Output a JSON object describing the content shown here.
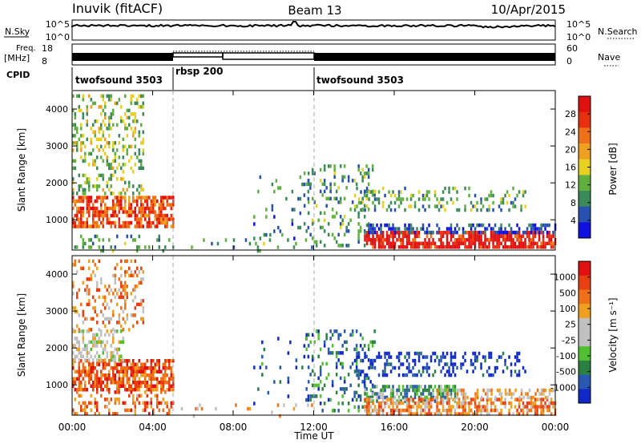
{
  "header": {
    "station": "Inuvik (fitACF)",
    "beam": "Beam 13",
    "date": "10/Apr/2015"
  },
  "top_panels": {
    "nsky_label": "N.Sky",
    "nsky_ticks": [
      "10^5",
      "10^0"
    ],
    "nsearch_label": "N.Search",
    "nsearch_ticks": [
      "10^5",
      "10^0"
    ],
    "freq_label": "Freq.",
    "freq_unit": "[MHz]",
    "freq_ticks": [
      "18",
      "8"
    ],
    "nave_label": "Nave",
    "nave_ticks": [
      "60",
      "0"
    ],
    "cpid_label": "CPID",
    "cpid_segments": [
      {
        "label": "twofsound 3503",
        "start_hour": 0,
        "end_hour": 5
      },
      {
        "label": "rbsp 200",
        "start_hour": 5,
        "end_hour": 12
      },
      {
        "label": "twofsound 3503",
        "start_hour": 12,
        "end_hour": 24
      }
    ]
  },
  "chart_data": [
    {
      "type": "heatmap",
      "name": "power",
      "ylabel": "Slant Range [km]",
      "yticks": [
        "1000",
        "2000",
        "3000",
        "4000"
      ],
      "ylim": [
        180,
        4500
      ],
      "xlim": [
        0,
        24
      ],
      "colorbar_label": "Power [dB]",
      "colorbar_ticks": [
        "4",
        "8",
        "12",
        "16",
        "20",
        "24",
        "28"
      ],
      "colorbar_colors": [
        "#1010e0",
        "#2850b0",
        "#3a8a5a",
        "#60b040",
        "#e8d020",
        "#f0a020",
        "#f07018",
        "#e83010",
        "#e01010"
      ],
      "scatter_regions": [
        {
          "t0": 0.0,
          "t1": 5.0,
          "r0": 850,
          "r1": 1650,
          "level": 0.78,
          "density": 0.7
        },
        {
          "t0": 0.0,
          "t1": 3.5,
          "r0": 1700,
          "r1": 4400,
          "level": 0.42,
          "density": 0.3
        },
        {
          "t0": 0.0,
          "t1": 5.0,
          "r0": 200,
          "r1": 600,
          "level": 0.3,
          "density": 0.18
        },
        {
          "t0": 5.3,
          "t1": 12.0,
          "r0": 200,
          "r1": 500,
          "level": 0.3,
          "density": 0.08
        },
        {
          "t0": 9.0,
          "t1": 11.8,
          "r0": 500,
          "r1": 2300,
          "level": 0.25,
          "density": 0.06
        },
        {
          "t0": 11.5,
          "t1": 15.0,
          "r0": 300,
          "r1": 2500,
          "level": 0.3,
          "density": 0.2
        },
        {
          "t0": 14.5,
          "t1": 24.0,
          "r0": 250,
          "r1": 700,
          "level": 0.92,
          "density": 0.75
        },
        {
          "t0": 14.5,
          "t1": 24.0,
          "r0": 700,
          "r1": 900,
          "level": 0.12,
          "density": 0.5
        },
        {
          "t0": 14.0,
          "t1": 22.5,
          "r0": 1300,
          "r1": 1900,
          "level": 0.35,
          "density": 0.25
        }
      ]
    },
    {
      "type": "heatmap",
      "name": "velocity",
      "ylabel": "Slant Range [km]",
      "yticks": [
        "1000",
        "2000",
        "3000",
        "4000"
      ],
      "ylim": [
        180,
        4500
      ],
      "xlim": [
        0,
        24
      ],
      "colorbar_label": "Velocity [m s⁻¹]",
      "colorbar_ticks": [
        "1000",
        "500",
        "100",
        "25",
        "-25",
        "-100",
        "-500",
        "-1000"
      ],
      "colorbar_colors": [
        "#1028c8",
        "#2858b0",
        "#2a8040",
        "#50c030",
        "#c0c0c0",
        "#c0c0c0",
        "#f0a020",
        "#f07018",
        "#e84010",
        "#e01010"
      ],
      "scatter_regions": [
        {
          "t0": 0.0,
          "t1": 5.0,
          "r0": 850,
          "r1": 1700,
          "level": 0.82,
          "density": 0.7
        },
        {
          "t0": 0.0,
          "t1": 2.5,
          "r0": 1700,
          "r1": 2500,
          "level": 0.5,
          "density": 0.45
        },
        {
          "t0": 0.0,
          "t1": 3.5,
          "r0": 2500,
          "r1": 4400,
          "level": 0.7,
          "density": 0.25
        },
        {
          "t0": 0.0,
          "t1": 5.0,
          "r0": 200,
          "r1": 850,
          "level": 0.75,
          "density": 0.3
        },
        {
          "t0": 5.3,
          "t1": 12.0,
          "r0": 200,
          "r1": 500,
          "level": 0.6,
          "density": 0.08
        },
        {
          "t0": 9.0,
          "t1": 11.8,
          "r0": 500,
          "r1": 2300,
          "level": 0.15,
          "density": 0.06
        },
        {
          "t0": 11.5,
          "t1": 15.0,
          "r0": 300,
          "r1": 2500,
          "level": 0.2,
          "density": 0.2
        },
        {
          "t0": 14.5,
          "t1": 19.0,
          "r0": 600,
          "r1": 1000,
          "level": 0.3,
          "density": 0.6
        },
        {
          "t0": 14.5,
          "t1": 24.0,
          "r0": 200,
          "r1": 650,
          "level": 0.72,
          "density": 0.6
        },
        {
          "t0": 18.0,
          "t1": 24.0,
          "r0": 650,
          "r1": 900,
          "level": 0.6,
          "density": 0.45
        },
        {
          "t0": 14.0,
          "t1": 22.5,
          "r0": 1300,
          "r1": 1900,
          "level": 0.05,
          "density": 0.3
        }
      ]
    }
  ],
  "xaxis": {
    "ticks": [
      "00:00",
      "04:00",
      "08:00",
      "12:00",
      "16:00",
      "20:00",
      "00:00"
    ],
    "label": "Time UT"
  }
}
